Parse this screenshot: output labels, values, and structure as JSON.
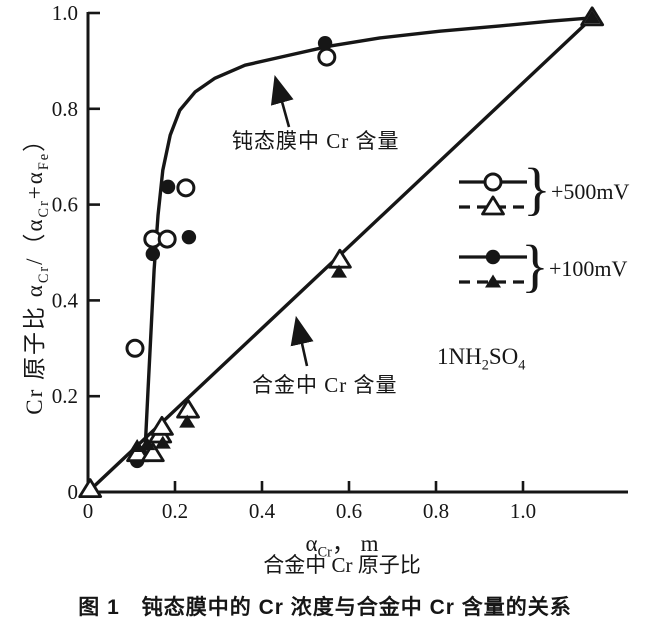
{
  "page": {
    "background": "#ffffff",
    "ink": "#161616"
  },
  "caption": "图 1　钝态膜中的 Cr 浓度与合金中 Cr 含量的关系",
  "axes": {
    "y_title": {
      "p0": "Cr 原子比 α",
      "s0": "Cr",
      "p1": "/（α",
      "s1": "Cr",
      "p2": "+α",
      "s2": "Fe",
      "p3": "）"
    },
    "x_title": {
      "p0": "α",
      "s0": "Cr",
      "p1": "，  m"
    },
    "x_subtitle": "合金中 Cr 原子比"
  },
  "legend": {
    "brace": "}",
    "groups": [
      {
        "label": "+500mV",
        "rows": [
          {
            "marker": "open-circle",
            "line": "solid"
          },
          {
            "marker": "open-triangle",
            "line": "dashed"
          }
        ]
      },
      {
        "label": "+100mV",
        "rows": [
          {
            "marker": "filled-circle",
            "line": "solid"
          },
          {
            "marker": "filled-triangle",
            "line": "dashed"
          }
        ]
      }
    ]
  },
  "annotations": {
    "film": "钝态膜中 Cr 含量",
    "alloy": "合金中 Cr 含量",
    "electrolyte": {
      "p0": "1NH",
      "s0": "2",
      "p1": "SO",
      "s1": "4"
    }
  },
  "chart_data": {
    "type": "scatter",
    "title": "钝态膜中的 Cr 浓度与合金中 Cr 含量的关系",
    "xlabel": "α_Cr, m（合金中 Cr 原子比）",
    "ylabel": "Cr 原子比 α_Cr/(α_Cr+α_Fe)",
    "xlim": [
      0,
      1.24
    ],
    "ylim": [
      0,
      1.0
    ],
    "grid": false,
    "legend_position": "right-middle",
    "x_ticks": {
      "values": [
        0,
        0.2,
        0.4,
        0.6,
        0.8,
        1.0
      ],
      "labels": [
        "0",
        "0.2",
        "0.4",
        "0.6",
        "0.8",
        "1.0"
      ]
    },
    "y_ticks": {
      "values": [
        0,
        0.2,
        0.4,
        0.6,
        0.8,
        1.0
      ],
      "labels": [
        "0",
        "0.2",
        "0.4",
        "0.6",
        "0.8",
        "1.0"
      ]
    },
    "series": [
      {
        "name": "钝态膜中 Cr 含量 +500mV",
        "marker": "open-circle",
        "points": [
          [
            0.108,
            0.3
          ],
          [
            0.149,
            0.528
          ],
          [
            0.182,
            0.528
          ],
          [
            0.225,
            0.635
          ],
          [
            0.549,
            0.908
          ]
        ]
      },
      {
        "name": "钝态膜中 Cr 含量 +100mV",
        "marker": "filled-circle",
        "points": [
          [
            0.113,
            0.065
          ],
          [
            0.149,
            0.497
          ],
          [
            0.184,
            0.637
          ],
          [
            0.232,
            0.532
          ],
          [
            0.545,
            0.937
          ]
        ]
      },
      {
        "name": "合金中 Cr 含量 +500mV",
        "marker": "open-triangle",
        "points": [
          [
            0.005,
            0.005
          ],
          [
            0.115,
            0.08
          ],
          [
            0.149,
            0.08
          ],
          [
            0.166,
            0.119
          ],
          [
            0.17,
            0.135
          ],
          [
            0.23,
            0.171
          ],
          [
            0.579,
            0.484
          ],
          [
            1.159,
            0.99
          ]
        ]
      },
      {
        "name": "合金中 Cr 含量 +100mV",
        "marker": "filled-triangle",
        "points": [
          [
            0.113,
            0.095
          ],
          [
            0.136,
            0.099
          ],
          [
            0.172,
            0.102
          ],
          [
            0.228,
            0.146
          ],
          [
            0.577,
            0.459
          ],
          [
            1.159,
            0.99
          ]
        ]
      }
    ],
    "curves": [
      {
        "name": "passive-film-curve",
        "style": "solid",
        "points": [
          [
            0.131,
            0.084
          ],
          [
            0.138,
            0.213
          ],
          [
            0.145,
            0.338
          ],
          [
            0.152,
            0.464
          ],
          [
            0.161,
            0.578
          ],
          [
            0.172,
            0.672
          ],
          [
            0.189,
            0.745
          ],
          [
            0.211,
            0.797
          ],
          [
            0.246,
            0.835
          ],
          [
            0.292,
            0.864
          ],
          [
            0.361,
            0.891
          ],
          [
            0.453,
            0.91
          ],
          [
            0.556,
            0.931
          ],
          [
            0.671,
            0.948
          ],
          [
            0.809,
            0.962
          ],
          [
            0.947,
            0.973
          ],
          [
            1.062,
            0.983
          ],
          [
            1.159,
            0.99
          ]
        ]
      },
      {
        "name": "alloy-line",
        "style": "solid",
        "points": [
          [
            0.0,
            0.0
          ],
          [
            1.159,
            0.99
          ]
        ]
      }
    ]
  }
}
